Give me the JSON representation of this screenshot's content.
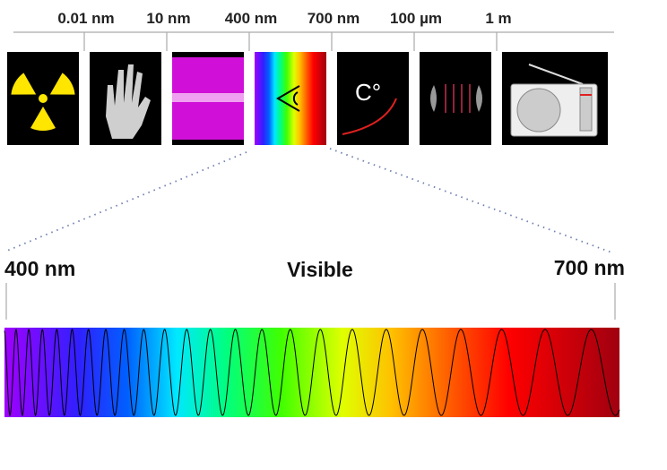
{
  "top_scale": {
    "labels": [
      "0.01 nm",
      "10 nm",
      "400 nm",
      "700 nm",
      "100 µm",
      "1 m"
    ]
  },
  "thermal_label": "C°",
  "visible": {
    "start_label": "400 nm",
    "title": "Visible",
    "end_label": "700 nm"
  }
}
